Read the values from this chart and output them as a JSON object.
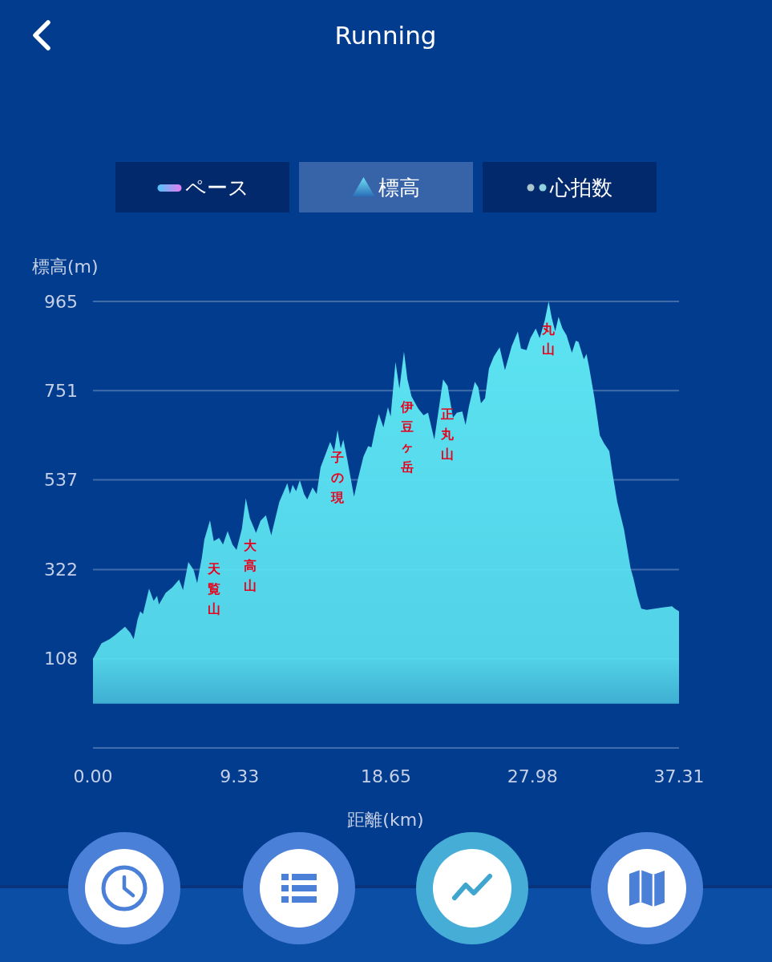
{
  "chart_data": {
    "type": "area",
    "title": "Running",
    "ylabel": "標高(m)",
    "xlabel": "距離(km)",
    "color": "#5ce4f2",
    "grid": "y",
    "xlim": [
      0,
      37.31
    ],
    "xticks": [
      {
        "value": 0,
        "label": "0.00"
      },
      9.33,
      18.65,
      27.98,
      37.31
    ],
    "ylim": [
      -106,
      965
    ],
    "yticks": [
      {
        "value": -106,
        "label": null
      },
      108,
      322,
      537,
      751,
      965
    ],
    "x": [
      0,
      0.54,
      1.06,
      1.39,
      2.04,
      2.38,
      2.59,
      2.84,
      3.01,
      3.18,
      3.57,
      3.86,
      4.08,
      4.2,
      4.63,
      5.05,
      5.48,
      5.73,
      6.07,
      6.41,
      6.63,
      6.93,
      7.09,
      7.45,
      7.69,
      8.03,
      8.28,
      8.57,
      8.88,
      9.14,
      9.48,
      9.73,
      9.99,
      10.38,
      10.67,
      11.01,
      11.35,
      11.86,
      12.37,
      12.54,
      12.71,
      12.93,
      13.17,
      13.44,
      13.64,
      13.98,
      14.24,
      14.49,
      14.84,
      15.1,
      15.35,
      15.57,
      15.77,
      15.94,
      16.19,
      16.62,
      16.88,
      17.22,
      17.52,
      17.73,
      17.98,
      18.2,
      18.49,
      18.78,
      18.95,
      19.26,
      19.51,
      19.8,
      20.02,
      20.28,
      20.71,
      21.05,
      21.33,
      21.73,
      21.98,
      22.29,
      22.58,
      22.92,
      23.17,
      23.51,
      23.72,
      23.94,
      24.31,
      24.53,
      24.7,
      24.96,
      25.21,
      25.52,
      25.89,
      26.23,
      26.66,
      27.05,
      27.25,
      27.6,
      27.85,
      28.19,
      28.44,
      28.76,
      29.01,
      29.21,
      29.43,
      29.64,
      29.89,
      30.15,
      30.49,
      30.74,
      30.91,
      31.25,
      31.42,
      31.59,
      31.93,
      32.27,
      32.53,
      32.87,
      33.04,
      33.38,
      33.8,
      34.23,
      34.4,
      34.66,
      34.91,
      35.25,
      35.76,
      36.27,
      36.87,
      37.04,
      37.31
    ],
    "values": [
      108,
      145,
      155,
      164,
      185,
      170,
      155,
      202,
      222,
      215,
      276,
      247,
      259,
      238,
      266,
      279,
      298,
      273,
      340,
      321,
      289,
      350,
      394,
      440,
      390,
      398,
      382,
      414,
      382,
      369,
      420,
      493,
      445,
      410,
      439,
      452,
      404,
      484,
      529,
      503,
      525,
      510,
      536,
      503,
      490,
      519,
      503,
      567,
      602,
      628,
      606,
      657,
      612,
      634,
      586,
      497,
      541,
      593,
      618,
      615,
      660,
      695,
      663,
      711,
      689,
      820,
      756,
      845,
      778,
      737,
      708,
      692,
      698,
      634,
      698,
      778,
      762,
      686,
      698,
      701,
      669,
      714,
      772,
      759,
      721,
      733,
      804,
      833,
      855,
      800,
      858,
      893,
      852,
      848,
      877,
      900,
      877,
      919,
      965,
      925,
      893,
      928,
      900,
      884,
      842,
      871,
      868,
      826,
      839,
      807,
      733,
      644,
      625,
      606,
      561,
      484,
      420,
      324,
      302,
      260,
      228,
      225,
      228,
      231,
      234,
      228,
      222
    ],
    "annotations": [
      "ペース",
      "標高",
      "心拍数",
      {
        "text": "天覧山",
        "x": 7.69,
        "y": 390
      },
      {
        "text": "大高山",
        "x": 9.99,
        "y": 445
      },
      {
        "text": "子の現",
        "x": 15.57,
        "y": 657
      },
      {
        "text": "伊豆ヶ岳",
        "x": 20.02,
        "y": 778
      },
      {
        "text": "正丸山",
        "x": 22.58,
        "y": 762
      },
      {
        "text": "丸山",
        "x": 29.01,
        "y": 965
      }
    ]
  }
}
